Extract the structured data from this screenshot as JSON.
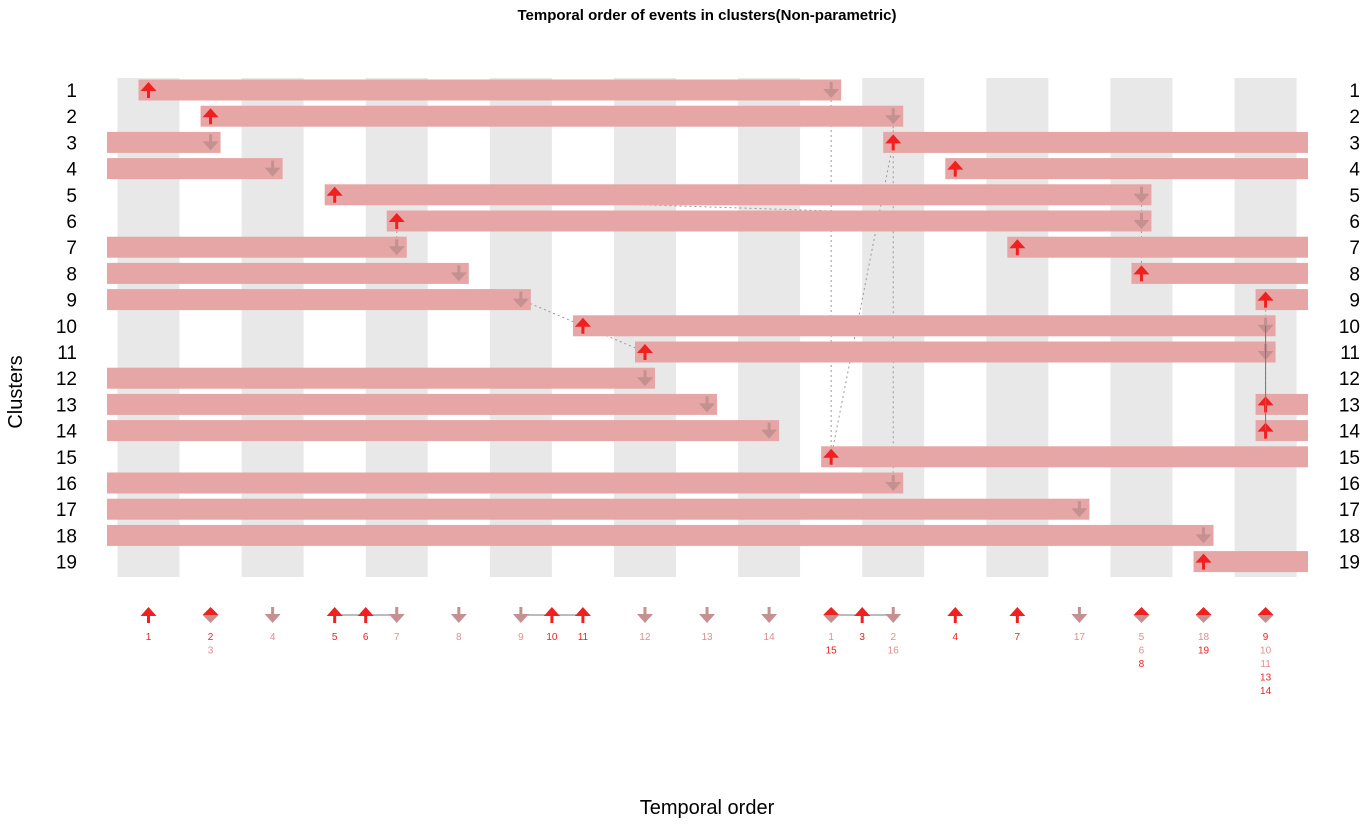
{
  "chart_data": {
    "type": "timeline",
    "title": "Temporal order of events in clusters(Non-parametric)",
    "xlabel": "Temporal order",
    "ylabel": "Clusters",
    "clusters": [
      "1",
      "2",
      "3",
      "4",
      "5",
      "6",
      "7",
      "8",
      "9",
      "10",
      "11",
      "12",
      "13",
      "14",
      "15",
      "16",
      "17",
      "18",
      "19"
    ],
    "x_positions": 19,
    "colors": {
      "bar": "#e6a6a6",
      "band": "#e8e8e8",
      "up_event": "#f02020",
      "down_event": "#c49090",
      "down_label": "#e08e8e",
      "connector": "#999999",
      "stack_line": "#777777"
    },
    "up_events": [
      {
        "cluster": "1",
        "position": 1
      },
      {
        "cluster": "2",
        "position": 2
      },
      {
        "cluster": "3",
        "position": 13
      },
      {
        "cluster": "4",
        "position": 14
      },
      {
        "cluster": "5",
        "position": 4
      },
      {
        "cluster": "6",
        "position": 5
      },
      {
        "cluster": "7",
        "position": 15
      },
      {
        "cluster": "8",
        "position": 17
      },
      {
        "cluster": "9",
        "position": 19
      },
      {
        "cluster": "10",
        "position": 8
      },
      {
        "cluster": "11",
        "position": 9
      },
      {
        "cluster": "13",
        "position": 19
      },
      {
        "cluster": "14",
        "position": 19
      },
      {
        "cluster": "15",
        "position": 12
      },
      {
        "cluster": "19",
        "position": 18
      }
    ],
    "down_events": [
      {
        "cluster": "1",
        "position": 12
      },
      {
        "cluster": "2",
        "position": 13
      },
      {
        "cluster": "3",
        "position": 2
      },
      {
        "cluster": "4",
        "position": 3
      },
      {
        "cluster": "5",
        "position": 17
      },
      {
        "cluster": "6",
        "position": 17
      },
      {
        "cluster": "7",
        "position": 5
      },
      {
        "cluster": "8",
        "position": 6
      },
      {
        "cluster": "9",
        "position": 7
      },
      {
        "cluster": "10",
        "position": 19
      },
      {
        "cluster": "11",
        "position": 19
      },
      {
        "cluster": "12",
        "position": 9
      },
      {
        "cluster": "13",
        "position": 10
      },
      {
        "cluster": "14",
        "position": 11
      },
      {
        "cluster": "16",
        "position": 13
      },
      {
        "cluster": "17",
        "position": 16
      },
      {
        "cluster": "18",
        "position": 18
      }
    ],
    "bottom_events": [
      {
        "position": 1,
        "markers": [
          {
            "type": "up",
            "x": 1
          }
        ],
        "labels": [
          {
            "text": "1",
            "type": "up"
          }
        ]
      },
      {
        "position": 2,
        "markers": [
          {
            "type": "both",
            "x": 2
          }
        ],
        "labels": [
          {
            "text": "2",
            "type": "up"
          },
          {
            "text": "3",
            "type": "down"
          }
        ]
      },
      {
        "position": 3,
        "markers": [
          {
            "type": "down",
            "x": 3
          }
        ],
        "labels": [
          {
            "text": "4",
            "type": "down"
          }
        ]
      },
      {
        "position": 4,
        "markers": [
          {
            "type": "up",
            "x": 4
          },
          {
            "type": "up",
            "x": 5
          },
          {
            "type": "down",
            "x": 6
          }
        ],
        "labels": [
          {
            "text": "5",
            "type": "up",
            "x": 4
          },
          {
            "text": "6",
            "type": "up",
            "x": 5
          },
          {
            "text": "7",
            "type": "down",
            "x": 6
          }
        ]
      },
      {
        "position": 6,
        "markers": [
          {
            "type": "down",
            "x": 7
          }
        ],
        "labels": [
          {
            "text": "8",
            "type": "down"
          }
        ]
      },
      {
        "position": 7,
        "markers": [
          {
            "type": "down",
            "x": 8
          },
          {
            "type": "up",
            "x": 9
          },
          {
            "type": "up",
            "x": 10
          }
        ],
        "labels": [
          {
            "text": "9",
            "type": "down",
            "x": 8
          },
          {
            "text": "10",
            "type": "up",
            "x": 9
          },
          {
            "text": "11",
            "type": "up",
            "x": 10
          }
        ]
      },
      {
        "position": 9,
        "markers": [
          {
            "type": "down",
            "x": 11
          }
        ],
        "labels": [
          {
            "text": "12",
            "type": "down"
          }
        ]
      },
      {
        "position": 10,
        "markers": [
          {
            "type": "down",
            "x": 12
          }
        ],
        "labels": [
          {
            "text": "13",
            "type": "down"
          }
        ]
      },
      {
        "position": 11,
        "markers": [
          {
            "type": "down",
            "x": 13
          }
        ],
        "labels": [
          {
            "text": "14",
            "type": "down"
          }
        ]
      },
      {
        "position": 12,
        "markers": [
          {
            "type": "both",
            "x": 14
          },
          {
            "type": "up",
            "x": 15
          },
          {
            "type": "down",
            "x": 16
          }
        ],
        "labels": [
          {
            "text": "1",
            "type": "down",
            "x": 14
          },
          {
            "text": "15",
            "type": "up",
            "x": 14,
            "row": 1
          },
          {
            "text": "3",
            "type": "up",
            "x": 15
          },
          {
            "text": "2",
            "type": "down",
            "x": 16
          },
          {
            "text": "16",
            "type": "down",
            "x": 16,
            "row": 1
          }
        ]
      },
      {
        "position": 14,
        "markers": [
          {
            "type": "up",
            "x": 17
          }
        ],
        "labels": [
          {
            "text": "4",
            "type": "up"
          }
        ]
      },
      {
        "position": 15,
        "markers": [
          {
            "type": "up",
            "x": 18
          }
        ],
        "labels": [
          {
            "text": "7",
            "type": "up"
          }
        ]
      },
      {
        "position": 16,
        "markers": [
          {
            "type": "down",
            "x": 19
          }
        ],
        "labels": [
          {
            "text": "17",
            "type": "down"
          }
        ]
      },
      {
        "position": 17,
        "markers": [
          {
            "type": "both",
            "x": 20
          }
        ],
        "labels": [
          {
            "text": "5",
            "type": "down"
          },
          {
            "text": "6",
            "type": "down"
          },
          {
            "text": "8",
            "type": "up"
          }
        ]
      },
      {
        "position": 18,
        "markers": [
          {
            "type": "both",
            "x": 21
          }
        ],
        "labels": [
          {
            "text": "18",
            "type": "down"
          },
          {
            "text": "19",
            "type": "up"
          }
        ]
      },
      {
        "position": 19,
        "markers": [
          {
            "type": "both",
            "x": 22
          }
        ],
        "labels": [
          {
            "text": "9",
            "type": "up"
          },
          {
            "text": "10",
            "type": "down"
          },
          {
            "text": "11",
            "type": "down"
          },
          {
            "text": "13",
            "type": "up"
          },
          {
            "text": "14",
            "type": "up"
          }
        ]
      }
    ],
    "grid": "alternating vertical bands"
  }
}
